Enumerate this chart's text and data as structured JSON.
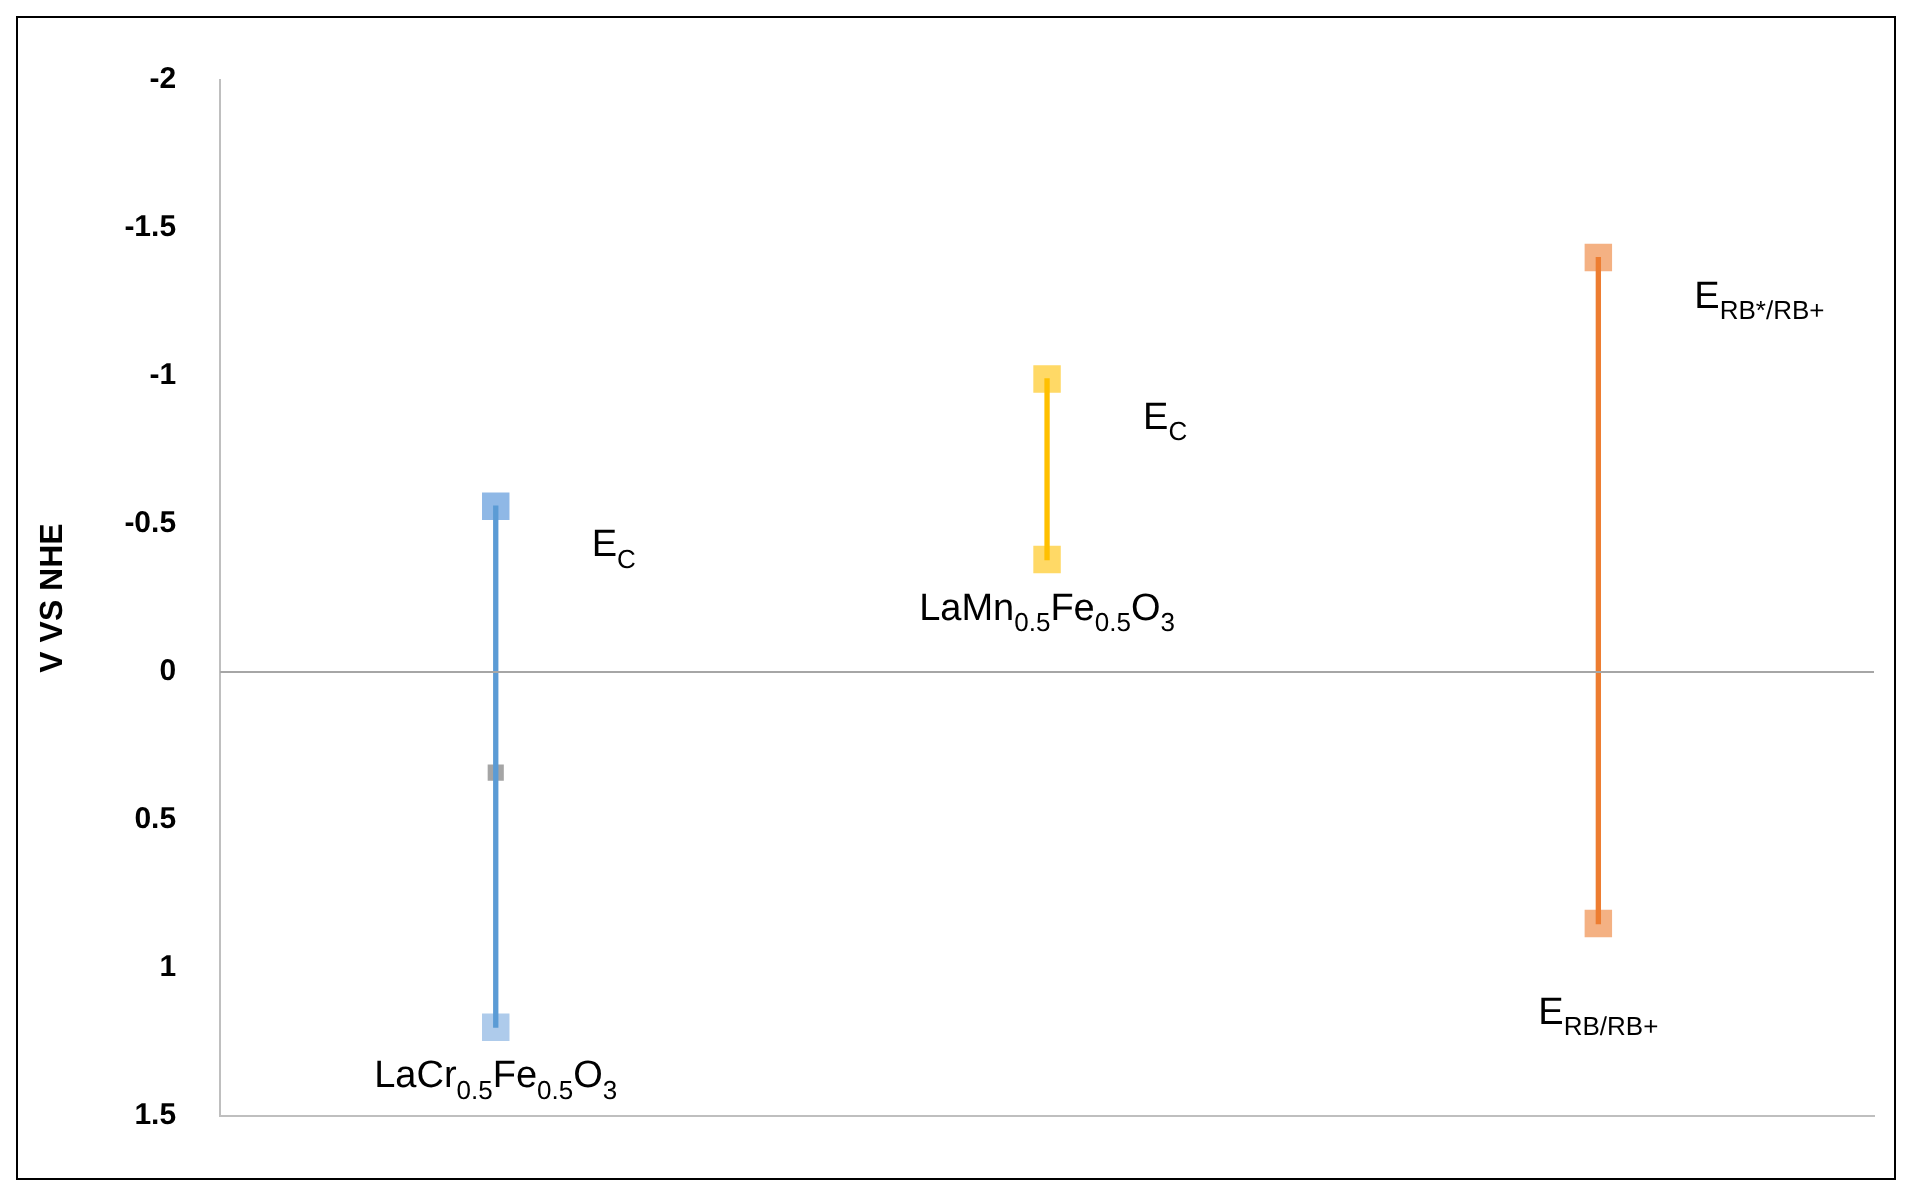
{
  "chart_data": {
    "type": "bar",
    "ylabel": "V VS NHE",
    "categories": [
      "LaCr$_{0.5}$Fe$_{0.5}$O$_{3}$",
      "LaMn$_{0.5}$Fe$_{0.5}$O$_{3}$",
      null
    ],
    "series": [
      {
        "colors": [
          "#5b9bd5",
          "#ffc000",
          "#ed7d31"
        ],
        "base": [
          -0.56,
          -0.99,
          -1.4
        ],
        "values": [
          1.76,
          0.61,
          2.25
        ]
      },
      {
        "type": "scatter",
        "colors": [
          "#8fb8e6",
          "#ffd966",
          "#f4b183"
        ],
        "values": [
          -0.56,
          -0.99,
          -1.4
        ]
      },
      {
        "type": "scatter",
        "colors": [
          "#aecbeb",
          "#ffd966",
          "#f4b183"
        ],
        "values": [
          1.2,
          -0.38,
          0.85
        ]
      },
      {
        "type": "scatter",
        "color": "#a5a5a5",
        "values": [
          0.34,
          null,
          null
        ]
      }
    ],
    "marker": "square",
    "ylim": [
      1.5,
      -2
    ],
    "yticks": [
      -2,
      -1.5,
      -1,
      -0.5,
      0,
      0.5,
      1,
      1.5
    ],
    "ref_lines": [
      {
        "axis": "y",
        "value": 0,
        "color": "#a6a6a6"
      }
    ],
    "annotations": [
      "E$_{C}$",
      "E$_{C}$",
      "E$_{RB*/RB+}$",
      "E$_{RB/RB+}$"
    ],
    "grid": false,
    "legend": false
  }
}
